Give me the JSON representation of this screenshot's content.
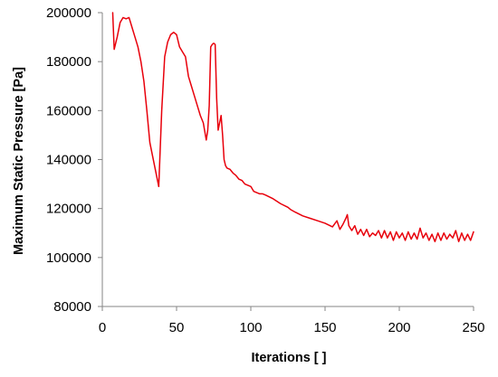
{
  "chart_data": {
    "type": "line",
    "title": "",
    "xlabel": "Iterations [ ]",
    "ylabel": "Maximum Static Pressure [Pa]",
    "xlim": [
      0,
      250
    ],
    "ylim": [
      80000,
      200000
    ],
    "xticks": [
      0,
      50,
      100,
      150,
      200,
      250
    ],
    "yticks": [
      80000,
      100000,
      120000,
      140000,
      160000,
      180000,
      200000
    ],
    "grid": false,
    "legend": "none",
    "series": [
      {
        "color": "#e8000b",
        "x": [
          7,
          8,
          10,
          12,
          14,
          16,
          18,
          20,
          22,
          24,
          26,
          28,
          30,
          32,
          34,
          36,
          38,
          40,
          42,
          44,
          46,
          48,
          50,
          52,
          54,
          56,
          58,
          60,
          62,
          64,
          66,
          68,
          70,
          71,
          72,
          73,
          74,
          75,
          76,
          77,
          78,
          79,
          80,
          81,
          82,
          83,
          84,
          86,
          88,
          90,
          92,
          94,
          96,
          98,
          100,
          102,
          104,
          106,
          108,
          110,
          115,
          120,
          125,
          127,
          130,
          135,
          140,
          145,
          150,
          155,
          158,
          160,
          162,
          164,
          165,
          166,
          168,
          170,
          172,
          174,
          176,
          178,
          180,
          182,
          184,
          186,
          188,
          190,
          192,
          194,
          196,
          198,
          200,
          202,
          204,
          206,
          208,
          210,
          212,
          214,
          216,
          218,
          220,
          222,
          224,
          226,
          228,
          230,
          232,
          234,
          236,
          238,
          240,
          242,
          244,
          246,
          248,
          250
        ],
        "values": [
          200000,
          185000,
          190000,
          196000,
          198000,
          197500,
          198000,
          194000,
          190000,
          186000,
          180000,
          172000,
          160000,
          147000,
          141000,
          135000,
          129000,
          160000,
          182000,
          188000,
          191000,
          192000,
          191000,
          186000,
          184000,
          182000,
          174000,
          170000,
          166000,
          162000,
          158000,
          155000,
          148000,
          152000,
          162000,
          186000,
          187000,
          187500,
          187000,
          165000,
          152000,
          155000,
          158000,
          150000,
          140000,
          137500,
          136500,
          136000,
          134500,
          133500,
          132000,
          131500,
          130000,
          129500,
          129000,
          127000,
          126500,
          126000,
          126000,
          125500,
          124000,
          122000,
          120500,
          119500,
          118500,
          117000,
          116000,
          115000,
          114000,
          112500,
          115000,
          111500,
          113500,
          116000,
          117500,
          113000,
          111000,
          113000,
          109500,
          111500,
          109000,
          111500,
          108500,
          110000,
          109000,
          111000,
          108000,
          111000,
          108000,
          110500,
          107000,
          110500,
          108000,
          110000,
          107000,
          110500,
          107500,
          110000,
          107500,
          112000,
          108000,
          110000,
          107000,
          109500,
          106500,
          110000,
          107000,
          110000,
          107500,
          109500,
          108000,
          111000,
          106500,
          110000,
          107000,
          109500,
          107000,
          110500
        ]
      }
    ]
  }
}
